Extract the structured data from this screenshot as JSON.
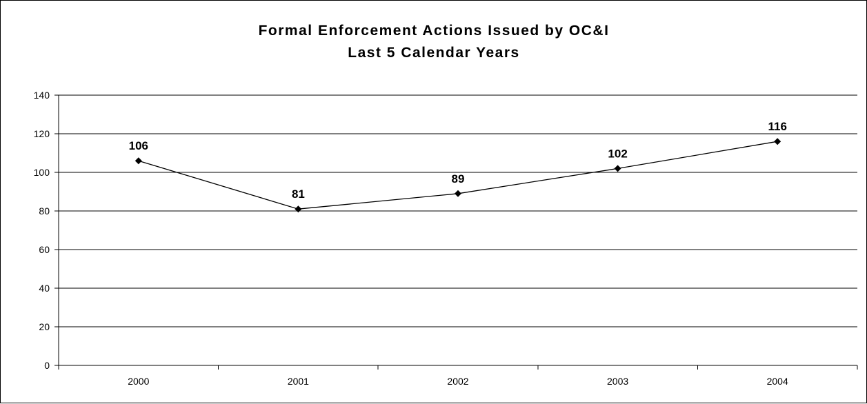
{
  "chart_data": {
    "type": "line",
    "title": [
      "Formal Enforcement Actions Issued by OC&I",
      "Last 5 Calendar Years"
    ],
    "xlabel": "",
    "ylabel": "",
    "categories": [
      "2000",
      "2001",
      "2002",
      "2003",
      "2004"
    ],
    "series": [
      {
        "values": [
          106,
          81,
          89,
          102,
          116
        ],
        "color": "#000000",
        "marker": "diamond"
      }
    ],
    "data_labels": [
      "106",
      "81",
      "89",
      "102",
      "116"
    ],
    "ylim": [
      0,
      140
    ],
    "y_ticks": [
      "0",
      "20",
      "40",
      "60",
      "80",
      "100",
      "120",
      "140"
    ],
    "grid": true,
    "legend": "none"
  }
}
